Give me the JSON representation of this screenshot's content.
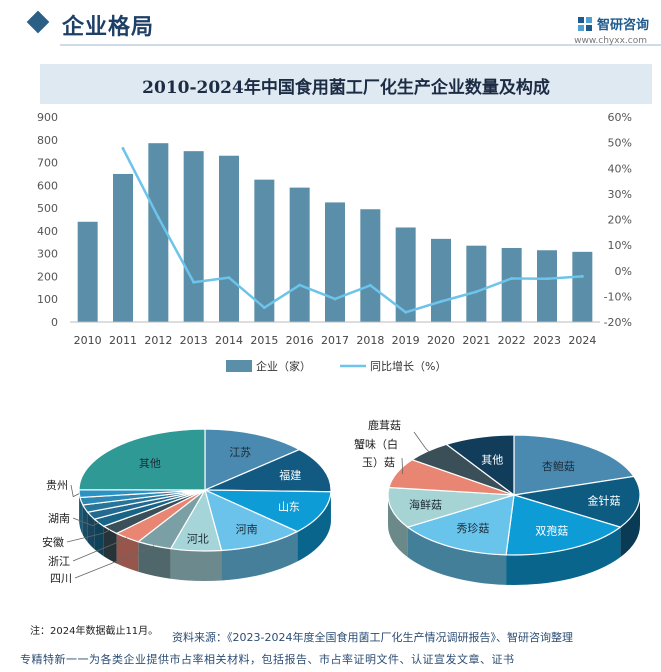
{
  "header": {
    "section_title": "企业格局",
    "logo_name": "智研咨询",
    "logo_url": "www.chyxx.com"
  },
  "chart_data": [
    {
      "type": "bar",
      "title": "2010-2024年中国食用菌工厂化生产企业数量及构成",
      "categories": [
        "2010",
        "2011",
        "2012",
        "2013",
        "2014",
        "2015",
        "2016",
        "2017",
        "2018",
        "2019",
        "2020",
        "2021",
        "2022",
        "2023",
        "2024"
      ],
      "series": [
        {
          "name": "企业（家）",
          "type": "bar",
          "axis": "left",
          "color": "#5b8ea8",
          "values": [
            440,
            650,
            785,
            750,
            730,
            625,
            590,
            525,
            495,
            415,
            365,
            335,
            325,
            315,
            308
          ]
        },
        {
          "name": "同比增长（%）",
          "type": "line",
          "axis": "right",
          "color": "#6cc4ea",
          "values": [
            null,
            47.7,
            20.8,
            -4.5,
            -2.7,
            -14.4,
            -5.6,
            -11.0,
            -5.7,
            -16.2,
            -12.0,
            -8.2,
            -3.0,
            -3.1,
            -2.2
          ]
        }
      ],
      "ylim_left": [
        0,
        900
      ],
      "left_ticks": [
        "0",
        "100",
        "200",
        "300",
        "400",
        "500",
        "600",
        "700",
        "800",
        "900"
      ],
      "ylim_right": [
        -20,
        60
      ],
      "right_ticks": [
        "-20%",
        "-10%",
        "0%",
        "10%",
        "20%",
        "30%",
        "40%",
        "50%",
        "60%"
      ],
      "grid": false,
      "legend": "bottom"
    },
    {
      "type": "pie",
      "style": "3d",
      "labels": [
        "江苏",
        "福建",
        "山东",
        "河南",
        "河北",
        "四川",
        "浙江",
        "安徽",
        "湖南",
        "",
        "",
        "",
        "贵州",
        "其他"
      ],
      "values": [
        13.5,
        12,
        11.5,
        11,
        6.5,
        4.5,
        3.5,
        2.5,
        2.2,
        2,
        2,
        2,
        2,
        25
      ],
      "colors": [
        "#4b8ab0",
        "#135a82",
        "#0e9cd6",
        "#6bc3ec",
        "#a6d5d9",
        "#7a9fa5",
        "#e88573",
        "#3b4f58",
        "#176487",
        "#24698f",
        "#27759a",
        "#2d88b3",
        "#2a93c6",
        "#2f9a95"
      ]
    },
    {
      "type": "pie",
      "style": "3d",
      "labels": [
        "杏鲍菇",
        "金针菇",
        "双孢菇",
        "秀珍菇",
        "海鲜菇",
        "蟹味（白玉）菇",
        "鹿茸菇",
        "其他"
      ],
      "values": [
        20,
        14,
        17,
        15,
        11,
        8,
        6,
        9
      ],
      "colors": [
        "#4b8ab0",
        "#0e5b82",
        "#0e9cd6",
        "#69c4ec",
        "#a6d3d3",
        "#e88573",
        "#3b4f58",
        "#113d5a"
      ]
    }
  ],
  "note": "注：2024年数据截止11月。",
  "source": "资料来源：《2023-2024年度全国食用菌工厂化生产情况调研报告》、智研咨询整理",
  "footer": "专精特新一一为各类企业提供市占率相关材料，包括报告、市占率证明文件、认证宣发文章、证书"
}
